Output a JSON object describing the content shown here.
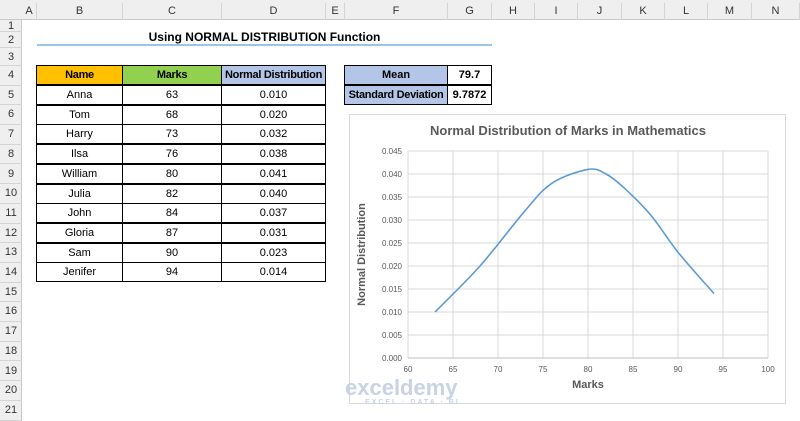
{
  "columns": [
    "A",
    "B",
    "C",
    "D",
    "E",
    "F",
    "G",
    "H",
    "I",
    "J",
    "K",
    "L",
    "M",
    "N"
  ],
  "rows": [
    "1",
    "2",
    "3",
    "4",
    "5",
    "6",
    "7",
    "8",
    "9",
    "10",
    "11",
    "12",
    "13",
    "14",
    "15",
    "16",
    "17",
    "18",
    "19",
    "20",
    "21"
  ],
  "title": "Using NORMAL DISTRIBUTION Function",
  "table": {
    "headers": [
      "Name",
      "Marks",
      "Normal Distribution"
    ],
    "header_colors": [
      "#ffc000",
      "#92d050",
      "#b4c6e7"
    ],
    "rows": [
      [
        "Anna",
        "63",
        "0.010"
      ],
      [
        "Tom",
        "68",
        "0.020"
      ],
      [
        "Harry",
        "73",
        "0.032"
      ],
      [
        "Ilsa",
        "76",
        "0.038"
      ],
      [
        "William",
        "80",
        "0.041"
      ],
      [
        "Julia",
        "82",
        "0.040"
      ],
      [
        "John",
        "84",
        "0.037"
      ],
      [
        "Gloria",
        "87",
        "0.031"
      ],
      [
        "Sam",
        "90",
        "0.023"
      ],
      [
        "Jenifer",
        "94",
        "0.014"
      ]
    ]
  },
  "stats": {
    "mean_label": "Mean",
    "mean_value": "79.7",
    "sd_label": "Standard Deviation",
    "sd_value": "9.7872",
    "label_color": "#b4c6e7"
  },
  "watermark": {
    "name": "exceldemy",
    "tagline": "EXCEL · DATA · BI"
  },
  "chart_data": {
    "type": "line",
    "title": "Normal Distribution of Marks in Mathematics",
    "xlabel": "Marks",
    "ylabel": "Normal Distribution",
    "x": [
      63,
      68,
      73,
      76,
      80,
      82,
      84,
      87,
      90,
      94
    ],
    "series": [
      {
        "values": [
          0.01,
          0.02,
          0.032,
          0.038,
          0.041,
          0.04,
          0.037,
          0.031,
          0.023,
          0.014
        ],
        "color": "#5b9bd5"
      }
    ],
    "xlim": [
      60,
      100
    ],
    "ylim": [
      0,
      0.045
    ],
    "xticks": [
      "60",
      "65",
      "70",
      "75",
      "80",
      "85",
      "90",
      "95",
      "100"
    ],
    "yticks": [
      "0.000",
      "0.005",
      "0.010",
      "0.015",
      "0.020",
      "0.025",
      "0.030",
      "0.035",
      "0.040",
      "0.045"
    ],
    "grid": true,
    "smooth": true
  }
}
